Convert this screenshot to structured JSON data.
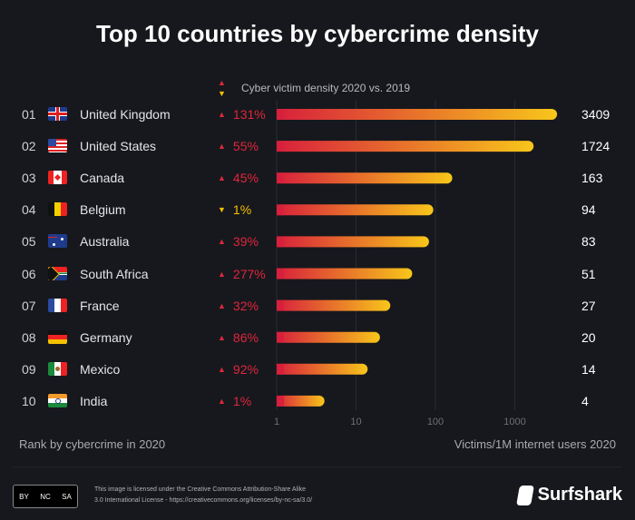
{
  "title": "Top 10 countries by cybercrime density",
  "legend": {
    "label": "Cyber victim density 2020 vs. 2019",
    "up_color": "#e0263c",
    "down_color": "#f5c000"
  },
  "colors": {
    "background": "#17181d",
    "bar_start": "#d8203c",
    "bar_end": "#f8c61a",
    "increase": "#e0263c",
    "decrease": "#f5c000"
  },
  "chart_data": {
    "type": "bar",
    "orientation": "horizontal",
    "title": "Top 10 countries by cybercrime density",
    "xlabel": "Victims/1M internet users 2020",
    "ylabel": "Rank by cybercrime in 2020",
    "xscale": "log",
    "xlim": [
      1,
      3409
    ],
    "xticks": [
      "1",
      "10",
      "100",
      "1000"
    ],
    "grid": true,
    "categories": [
      "United Kingdom",
      "United States",
      "Canada",
      "Belgium",
      "Australia",
      "South Africa",
      "France",
      "Germany",
      "Mexico",
      "India"
    ],
    "ranks": [
      "01",
      "02",
      "03",
      "04",
      "05",
      "06",
      "07",
      "08",
      "09",
      "10"
    ],
    "values": [
      3409,
      1724,
      163,
      94,
      83,
      51,
      27,
      20,
      14,
      4
    ],
    "change": [
      {
        "dir": "up",
        "text": "131%"
      },
      {
        "dir": "up",
        "text": "55%"
      },
      {
        "dir": "up",
        "text": "45%"
      },
      {
        "dir": "down",
        "text": "1%"
      },
      {
        "dir": "up",
        "text": "39%"
      },
      {
        "dir": "up",
        "text": "277%"
      },
      {
        "dir": "up",
        "text": "32%"
      },
      {
        "dir": "up",
        "text": "86%"
      },
      {
        "dir": "up",
        "text": "92%"
      },
      {
        "dir": "up",
        "text": "1%"
      }
    ],
    "flags": [
      "uk",
      "us",
      "ca",
      "be",
      "au",
      "za",
      "fr",
      "de",
      "mx",
      "in"
    ]
  },
  "footer": {
    "license_line1": "This image is licensed under the Creative Commons Attribution-Share Alike",
    "license_line2": "3.0 International License - https://creativecommons.org/licenses/by-nc-sa/3.0/",
    "cc_badge": [
      "BY",
      "NC",
      "SA"
    ],
    "brand": "Surfshark"
  }
}
